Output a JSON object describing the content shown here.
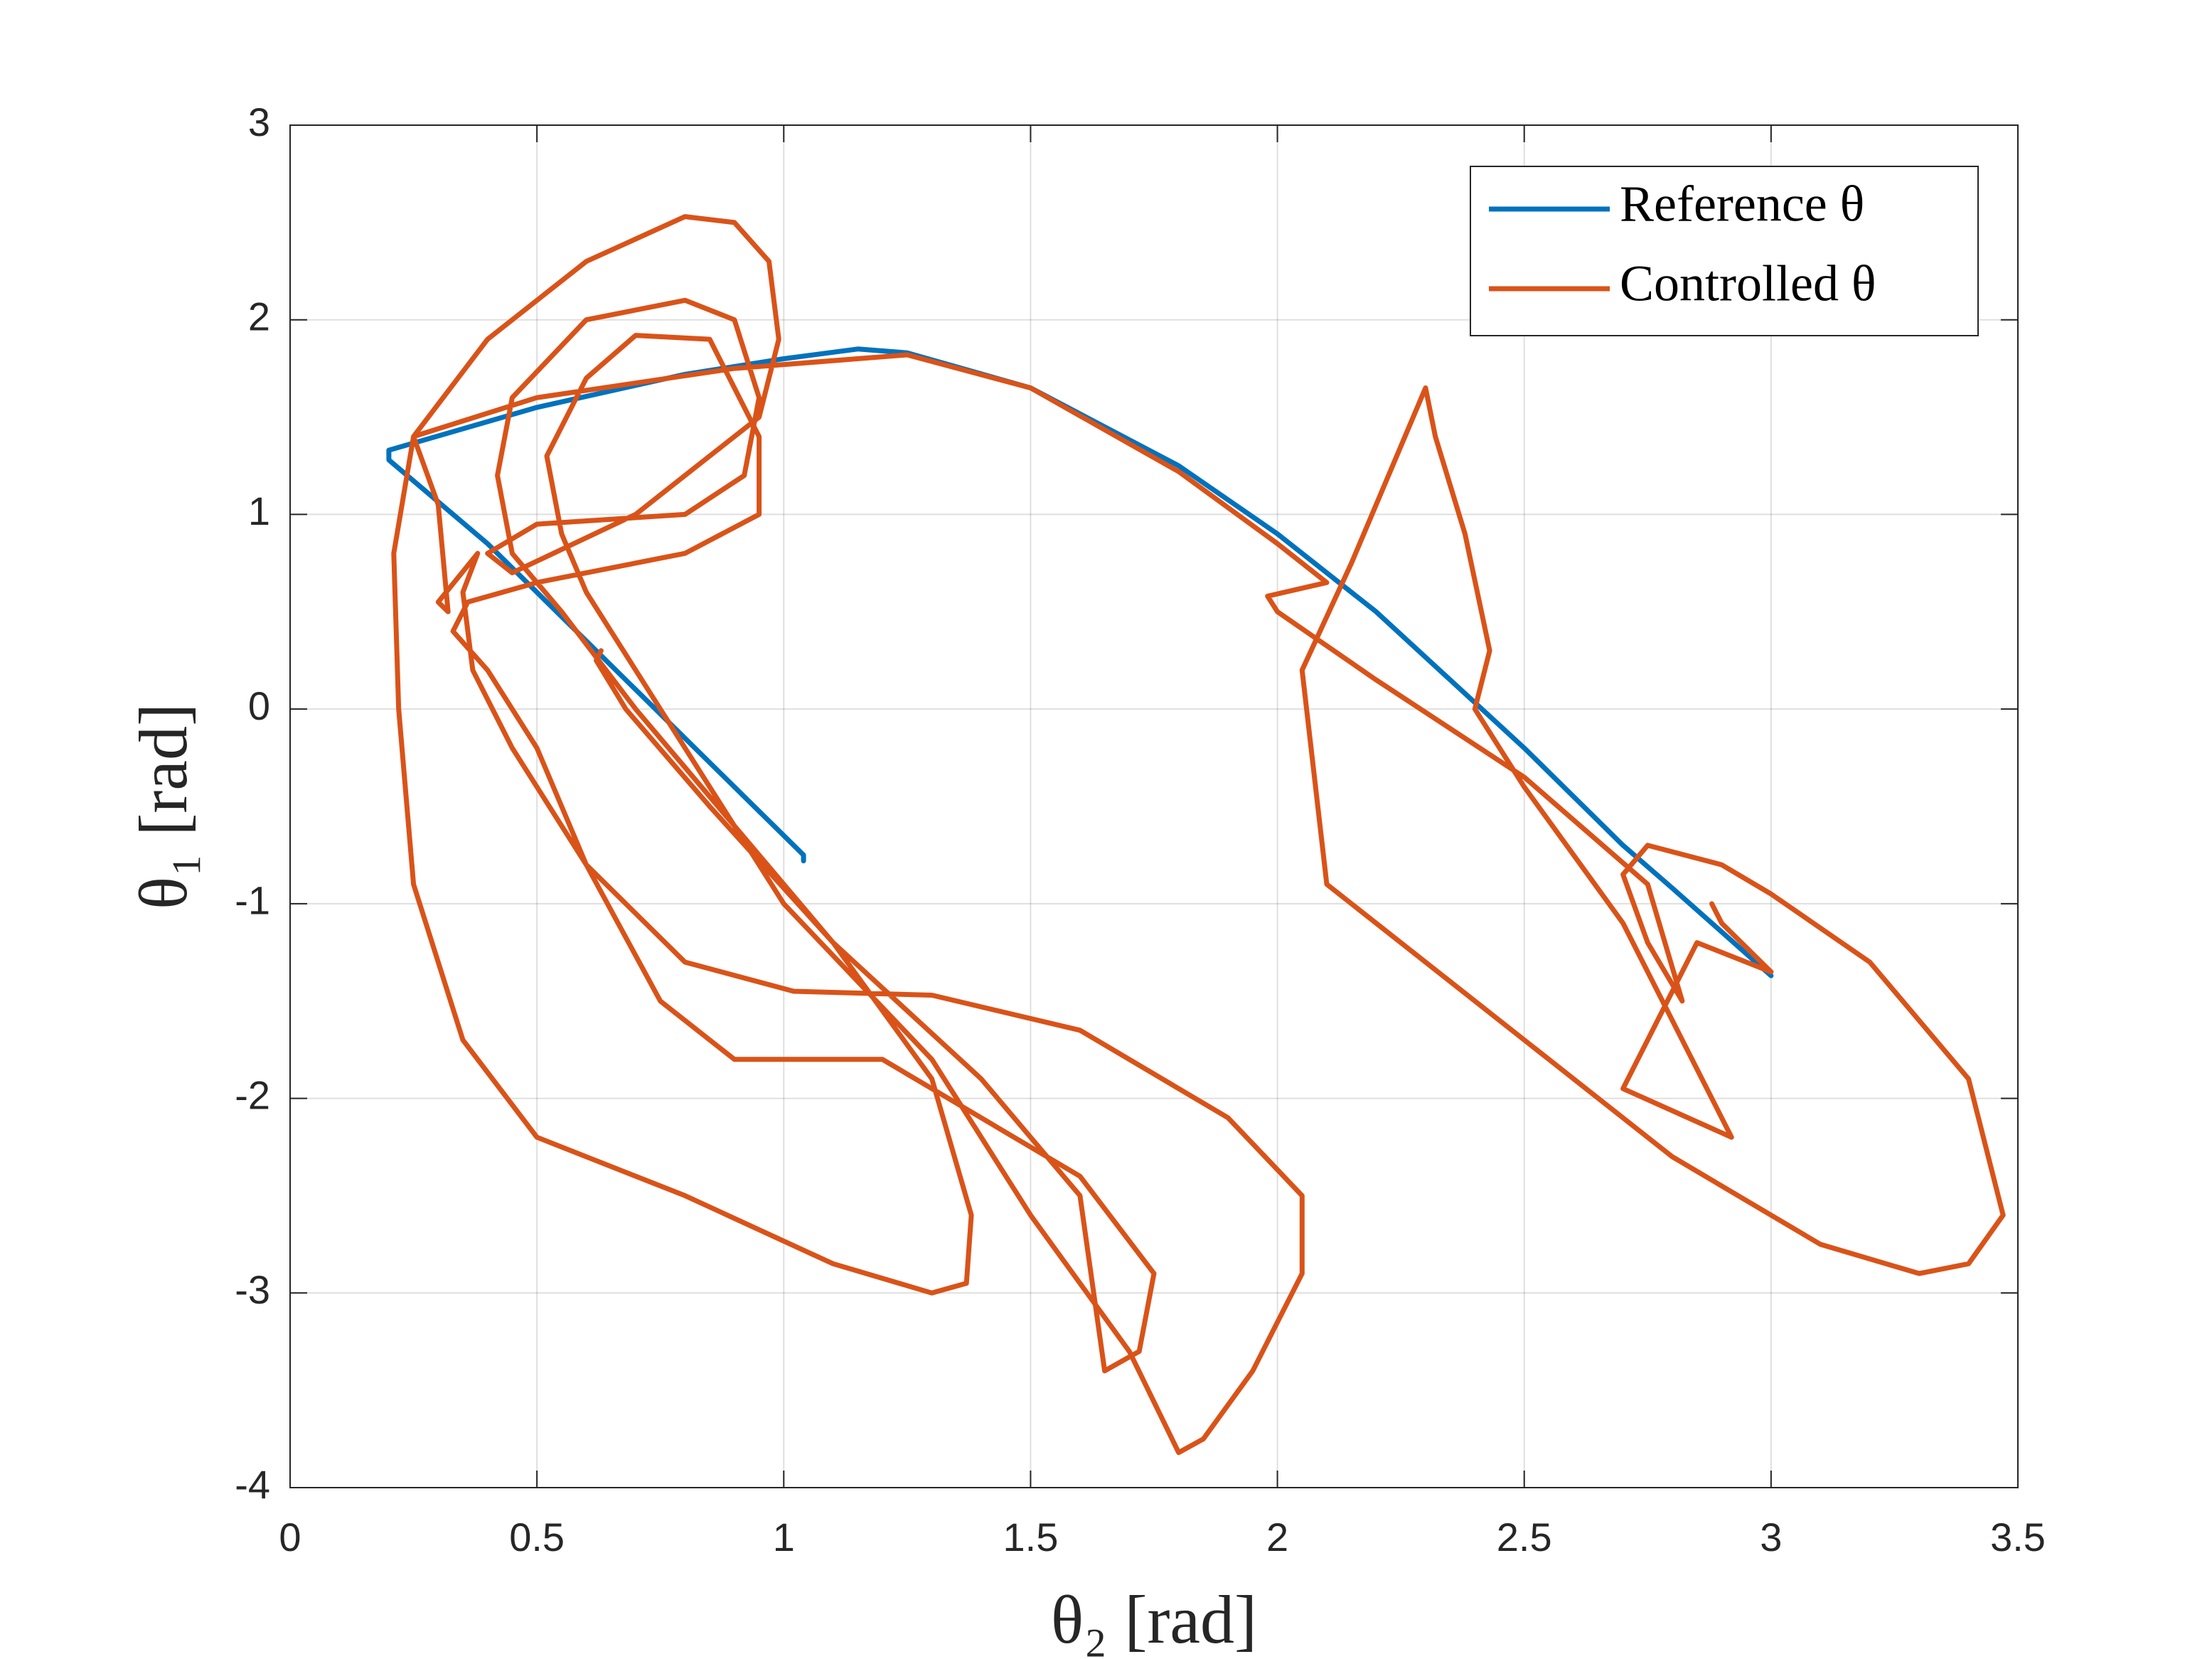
{
  "chart_data": {
    "type": "line",
    "xlabel": "θ₂ [rad]",
    "ylabel": "θ₁ [rad]",
    "xlim": [
      0,
      3.5
    ],
    "ylim": [
      -4,
      3
    ],
    "xticks": [
      0,
      0.5,
      1,
      1.5,
      2,
      2.5,
      3,
      3.5
    ],
    "yticks": [
      -4,
      -3,
      -2,
      -1,
      0,
      1,
      2,
      3
    ],
    "grid": true,
    "legend": "upper right",
    "series": [
      {
        "name": "Reference θ",
        "color": "#0072bd",
        "x": [
          1.04,
          1.04,
          0.7,
          0.4,
          0.2,
          0.2,
          0.5,
          0.8,
          1.0,
          1.15,
          1.25,
          1.5,
          1.8,
          2.0,
          2.2,
          2.5,
          2.7,
          2.8,
          3.0
        ],
        "values": [
          -0.78,
          -0.75,
          0.1,
          0.85,
          1.28,
          1.33,
          1.55,
          1.72,
          1.8,
          1.85,
          1.83,
          1.65,
          1.25,
          0.9,
          0.5,
          -0.2,
          -0.7,
          -0.92,
          -1.37
        ]
      },
      {
        "name": "Controlled θ",
        "color": "#d95319",
        "x": [
          0.63,
          0.62,
          0.68,
          0.85,
          1.1,
          1.3,
          1.38,
          1.37,
          1.3,
          1.1,
          0.8,
          0.5,
          0.35,
          0.25,
          0.22,
          0.21,
          0.25,
          0.4,
          0.6,
          0.8,
          0.9,
          0.97,
          0.99,
          0.95,
          0.85,
          0.7,
          0.45,
          0.4,
          0.5,
          0.8,
          0.92,
          0.95,
          0.9,
          0.8,
          0.6,
          0.45,
          0.42,
          0.45,
          0.55,
          0.7,
          0.9,
          1.1,
          1.4,
          1.6,
          1.65,
          1.72,
          1.75,
          1.6,
          1.2,
          0.9,
          0.75,
          0.6,
          0.5,
          0.4,
          0.33,
          0.36,
          0.5,
          0.8,
          0.95,
          0.95,
          0.85,
          0.7,
          0.6,
          0.52,
          0.55,
          0.6,
          0.8,
          1.0,
          1.3,
          1.5,
          1.7,
          1.8,
          1.85,
          1.95,
          2.05,
          2.05,
          1.9,
          1.6,
          1.3,
          1.02,
          0.8,
          0.6,
          0.45,
          0.37,
          0.35,
          0.38,
          0.3,
          0.32,
          0.3,
          0.25,
          0.5,
          0.9,
          1.25,
          1.5,
          1.8,
          2.0,
          2.1,
          1.98,
          2.0,
          2.2,
          2.5,
          2.75,
          2.82,
          2.75,
          2.7,
          2.75,
          2.9,
          3.0,
          3.2,
          3.4,
          3.47,
          3.4,
          3.3,
          3.1,
          2.8,
          2.55,
          2.3,
          2.1,
          2.05,
          2.15,
          2.3,
          2.32,
          2.38,
          2.43,
          2.4,
          2.5,
          2.7,
          2.9,
          2.92,
          2.7,
          2.85,
          3.0,
          2.9,
          2.88
        ],
        "values": [
          0.3,
          0.25,
          0.0,
          -0.5,
          -1.2,
          -1.9,
          -2.6,
          -2.95,
          -3.0,
          -2.85,
          -2.5,
          -2.2,
          -1.7,
          -0.9,
          0.0,
          0.8,
          1.4,
          1.9,
          2.3,
          2.53,
          2.5,
          2.3,
          1.9,
          1.5,
          1.3,
          1.0,
          0.7,
          0.8,
          0.95,
          1.0,
          1.2,
          1.6,
          2.0,
          2.1,
          2.0,
          1.6,
          1.2,
          0.8,
          0.5,
          0.0,
          -0.6,
          -1.2,
          -1.9,
          -2.5,
          -3.4,
          -3.3,
          -2.9,
          -2.4,
          -1.8,
          -1.8,
          -1.5,
          -0.8,
          -0.2,
          0.2,
          0.4,
          0.55,
          0.65,
          0.8,
          1.0,
          1.4,
          1.9,
          1.92,
          1.7,
          1.3,
          0.9,
          0.6,
          -0.2,
          -1.0,
          -1.8,
          -2.6,
          -3.3,
          -3.82,
          -3.75,
          -3.4,
          -2.9,
          -2.5,
          -2.1,
          -1.65,
          -1.47,
          -1.45,
          -1.3,
          -0.8,
          -0.2,
          0.2,
          0.6,
          0.8,
          0.55,
          0.5,
          1.05,
          1.4,
          1.6,
          1.75,
          1.82,
          1.65,
          1.22,
          0.85,
          0.65,
          0.58,
          0.5,
          0.15,
          -0.35,
          -0.9,
          -1.5,
          -1.2,
          -0.85,
          -0.7,
          -0.8,
          -0.95,
          -1.3,
          -1.9,
          -2.6,
          -2.85,
          -2.9,
          -2.75,
          -2.3,
          -1.8,
          -1.3,
          -0.9,
          0.2,
          0.75,
          1.65,
          1.4,
          0.9,
          0.3,
          0.0,
          -0.4,
          -1.1,
          -2.1,
          -2.2,
          -1.95,
          -1.2,
          -1.35,
          -1.1,
          -1.0
        ]
      }
    ]
  }
}
